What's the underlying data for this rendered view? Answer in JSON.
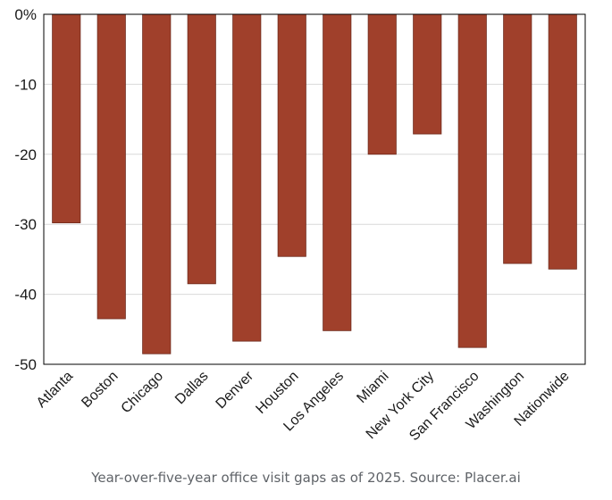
{
  "chart_data": {
    "type": "bar",
    "categories": [
      "Atlanta",
      "Boston",
      "Chicago",
      "Dallas",
      "Denver",
      "Houston",
      "Los Angeles",
      "Miami",
      "New York City",
      "San Francisco",
      "Washington",
      "Nationwide"
    ],
    "values": [
      -29.8,
      -43.5,
      -48.5,
      -38.5,
      -46.7,
      -34.6,
      -45.2,
      -20.0,
      -17.1,
      -47.6,
      -35.6,
      -36.4
    ],
    "ylim": [
      -50,
      0
    ],
    "yticks": [
      0,
      -10,
      -20,
      -30,
      -40,
      -50
    ],
    "ytick_labels": [
      "0%",
      "-10",
      "-20",
      "-30",
      "-40",
      "-50"
    ],
    "grid": true,
    "bar_color": "#a0402b",
    "bar_edge_color": "#6e2a1c",
    "title": "",
    "xlabel": "",
    "ylabel": ""
  },
  "caption": "Year-over-five-year office visit gaps as of 2025. Source: Placer.ai"
}
